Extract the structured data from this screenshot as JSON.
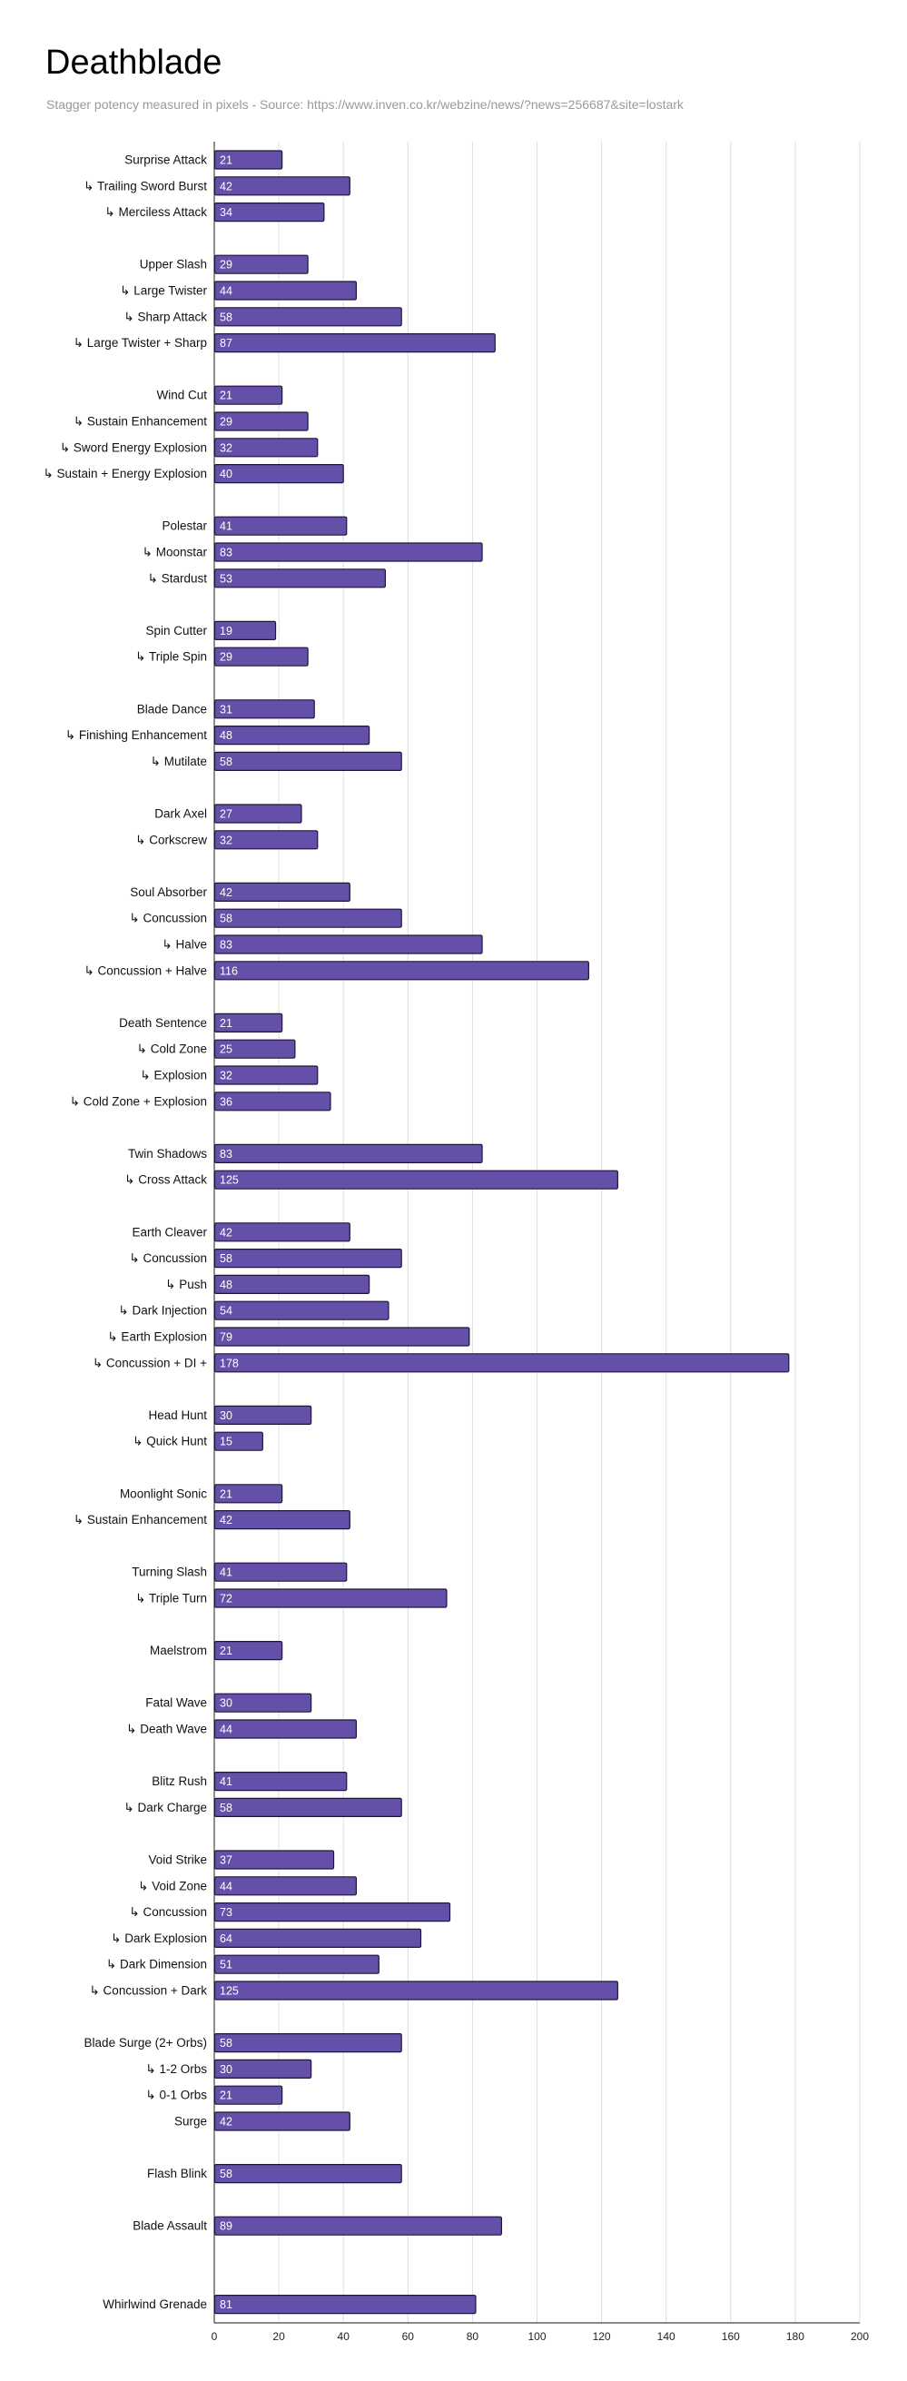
{
  "header": {
    "title": "Deathblade",
    "subtitle": "Stagger potency measured in pixels - Source: https://www.inven.co.kr/webzine/news/?news=256687&site=lostark"
  },
  "colors": {
    "bar_fill": "#6450a8",
    "bar_stroke": "#1e1638",
    "value_label": "#ffffff",
    "gridline": "#dedede",
    "axis": "#444444"
  },
  "chart_data": {
    "type": "bar",
    "orientation": "horizontal",
    "title": "Deathblade",
    "subtitle": "Stagger potency measured in pixels - Source: https://www.inven.co.kr/webzine/news/?news=256687&site=lostark",
    "xlabel": "",
    "ylabel": "",
    "xlim": [
      0,
      200
    ],
    "x_ticks": [
      0,
      20,
      40,
      60,
      80,
      100,
      120,
      140,
      160,
      180,
      200
    ],
    "grid": true,
    "legend": "none",
    "groups": [
      {
        "items": [
          {
            "label": "Surprise Attack",
            "value": 21
          },
          {
            "label": "↳ Trailing Sword Burst",
            "value": 42
          },
          {
            "label": "↳ Merciless Attack",
            "value": 34
          }
        ]
      },
      {
        "items": [
          {
            "label": "Upper Slash",
            "value": 29
          },
          {
            "label": "↳ Large Twister",
            "value": 44
          },
          {
            "label": "↳ Sharp Attack",
            "value": 58
          },
          {
            "label": "↳ Large Twister + Sharp",
            "value": 87
          }
        ]
      },
      {
        "items": [
          {
            "label": "Wind Cut",
            "value": 21
          },
          {
            "label": "↳ Sustain Enhancement",
            "value": 29
          },
          {
            "label": "↳ Sword Energy Explosion",
            "value": 32
          },
          {
            "label": "↳ Sustain + Energy Explosion",
            "value": 40
          }
        ]
      },
      {
        "items": [
          {
            "label": "Polestar",
            "value": 41
          },
          {
            "label": "↳ Moonstar",
            "value": 83
          },
          {
            "label": "↳ Stardust",
            "value": 53
          }
        ]
      },
      {
        "items": [
          {
            "label": "Spin Cutter",
            "value": 19
          },
          {
            "label": "↳ Triple Spin",
            "value": 29
          }
        ]
      },
      {
        "items": [
          {
            "label": "Blade Dance",
            "value": 31
          },
          {
            "label": "↳ Finishing Enhancement",
            "value": 48
          },
          {
            "label": "↳ Mutilate",
            "value": 58
          }
        ]
      },
      {
        "items": [
          {
            "label": "Dark Axel",
            "value": 27
          },
          {
            "label": "↳ Corkscrew",
            "value": 32
          }
        ]
      },
      {
        "items": [
          {
            "label": "Soul Absorber",
            "value": 42
          },
          {
            "label": "↳ Concussion",
            "value": 58
          },
          {
            "label": "↳ Halve",
            "value": 83
          },
          {
            "label": "↳ Concussion + Halve",
            "value": 116
          }
        ]
      },
      {
        "items": [
          {
            "label": "Death Sentence",
            "value": 21
          },
          {
            "label": "↳ Cold Zone",
            "value": 25
          },
          {
            "label": "↳ Explosion",
            "value": 32
          },
          {
            "label": "↳ Cold Zone + Explosion",
            "value": 36
          }
        ]
      },
      {
        "items": [
          {
            "label": "Twin Shadows",
            "value": 83
          },
          {
            "label": "↳ Cross Attack",
            "value": 125
          }
        ]
      },
      {
        "items": [
          {
            "label": "Earth Cleaver",
            "value": 42
          },
          {
            "label": "↳ Concussion",
            "value": 58
          },
          {
            "label": "↳ Push",
            "value": 48
          },
          {
            "label": "↳ Dark Injection",
            "value": 54
          },
          {
            "label": "↳ Earth Explosion",
            "value": 79
          },
          {
            "label": "↳ Concussion + DI +",
            "value": 178
          }
        ]
      },
      {
        "items": [
          {
            "label": "Head Hunt",
            "value": 30
          },
          {
            "label": "↳ Quick Hunt",
            "value": 15
          }
        ]
      },
      {
        "items": [
          {
            "label": "Moonlight Sonic",
            "value": 21
          },
          {
            "label": "↳ Sustain Enhancement",
            "value": 42
          }
        ]
      },
      {
        "items": [
          {
            "label": "Turning Slash",
            "value": 41
          },
          {
            "label": "↳ Triple Turn",
            "value": 72
          }
        ]
      },
      {
        "items": [
          {
            "label": "Maelstrom",
            "value": 21
          }
        ]
      },
      {
        "items": [
          {
            "label": "Fatal Wave",
            "value": 30
          },
          {
            "label": "↳ Death Wave",
            "value": 44
          }
        ]
      },
      {
        "items": [
          {
            "label": "Blitz Rush",
            "value": 41
          },
          {
            "label": "↳ Dark Charge",
            "value": 58
          }
        ]
      },
      {
        "items": [
          {
            "label": "Void Strike",
            "value": 37
          },
          {
            "label": "↳ Void Zone",
            "value": 44
          },
          {
            "label": "↳ Concussion",
            "value": 73
          },
          {
            "label": "↳ Dark Explosion",
            "value": 64
          },
          {
            "label": "↳ Dark Dimension",
            "value": 51
          },
          {
            "label": "↳ Concussion + Dark",
            "value": 125
          }
        ]
      },
      {
        "items": [
          {
            "label": "Blade Surge (2+ Orbs)",
            "value": 58
          },
          {
            "label": "↳ 1-2 Orbs",
            "value": 30
          },
          {
            "label": "↳ 0-1 Orbs",
            "value": 21
          },
          {
            "label": "Surge",
            "value": 42
          }
        ]
      },
      {
        "items": [
          {
            "label": "Flash Blink",
            "value": 58
          }
        ]
      },
      {
        "items": [
          {
            "label": "Blade Assault",
            "value": 89
          }
        ]
      },
      {
        "gap_before": 2,
        "items": [
          {
            "label": "Whirlwind Grenade",
            "value": 81
          }
        ]
      }
    ]
  }
}
